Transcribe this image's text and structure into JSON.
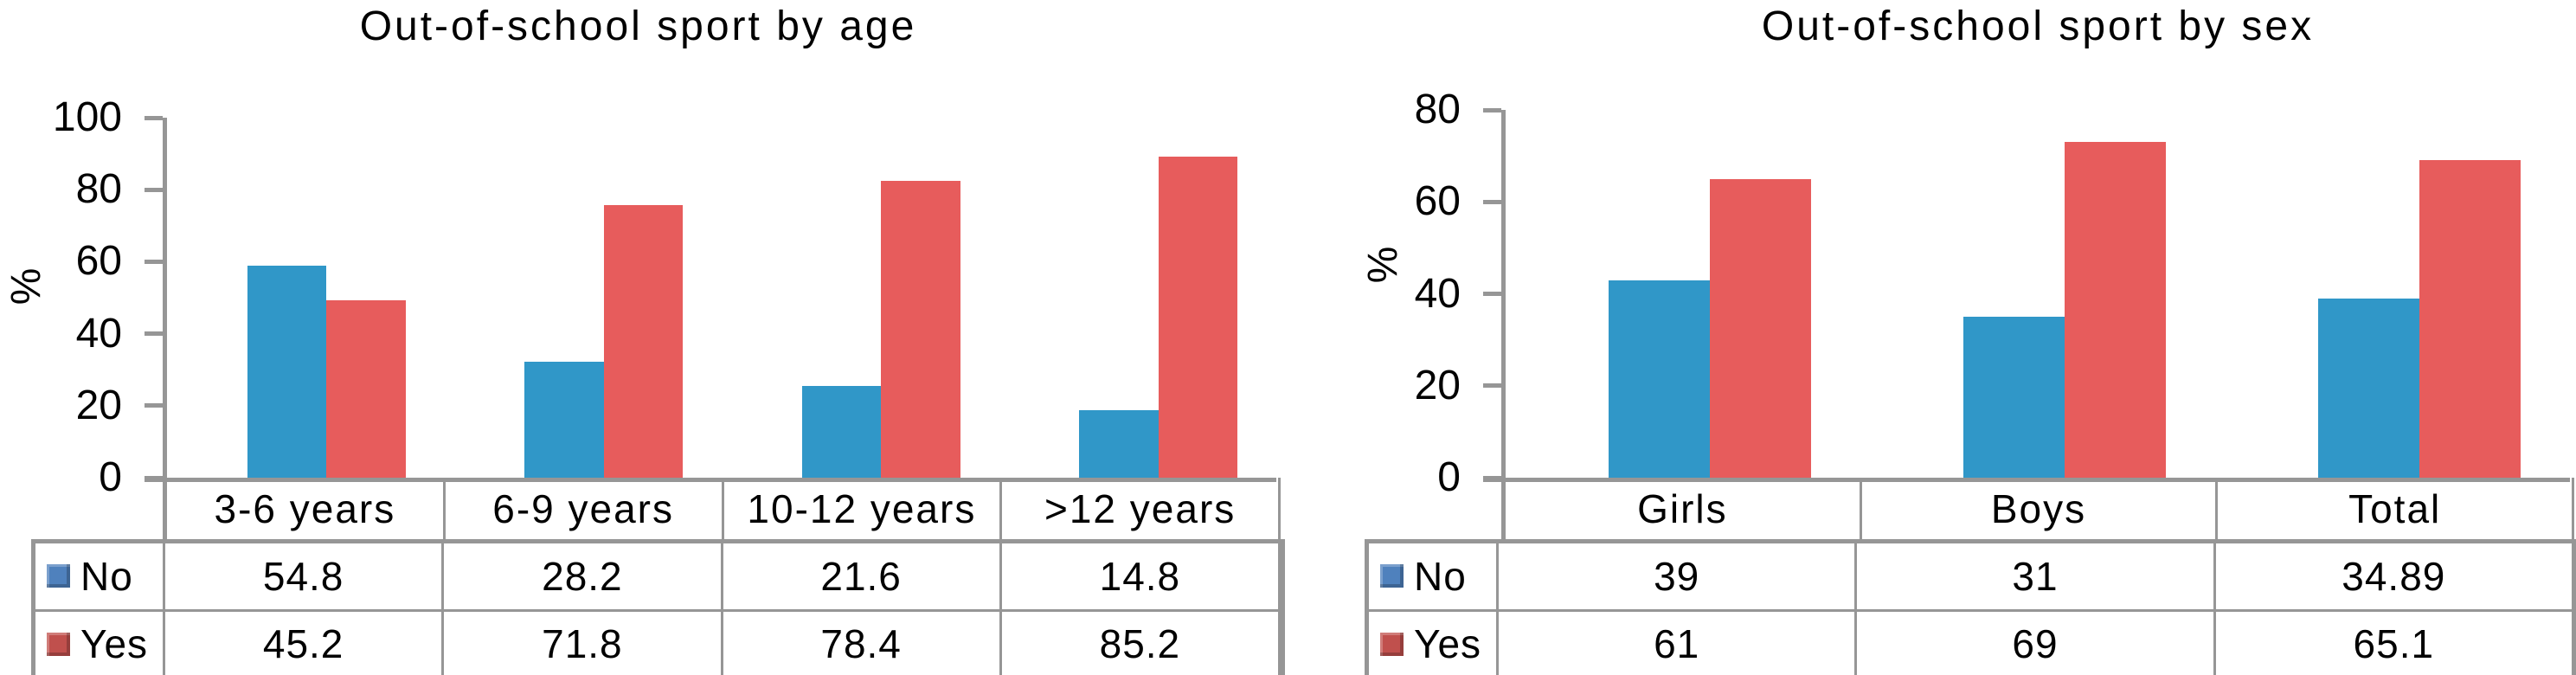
{
  "chart_data": [
    {
      "type": "bar",
      "title": "Out-of-school sport by age",
      "ylabel": "%",
      "ylim": [
        0,
        100
      ],
      "y_ticks": [
        100,
        80,
        60,
        40,
        20,
        0
      ],
      "categories": [
        "3-6 years",
        "6-9 years",
        "10-12 years",
        ">12 years"
      ],
      "series": [
        {
          "name": "No",
          "values": [
            54.8,
            28.2,
            21.6,
            14.8
          ],
          "bar_color": "#3097C8",
          "legend_color": "#4F81BD"
        },
        {
          "name": "Yes",
          "values": [
            45.2,
            71.8,
            78.4,
            85.2
          ],
          "bar_color": "#E75C5C",
          "legend_color": "#C0504D"
        }
      ],
      "grid": false,
      "legend_position": "table-left",
      "visual_bar_offset": 4
    },
    {
      "type": "bar",
      "title": "Out-of-school sport by sex",
      "ylabel": "%",
      "ylim": [
        0,
        80
      ],
      "y_ticks": [
        80,
        60,
        40,
        20,
        0
      ],
      "categories": [
        "Girls",
        "Boys",
        "Total"
      ],
      "series": [
        {
          "name": "No",
          "values": [
            39,
            31,
            34.89
          ],
          "bar_color": "#3097C8",
          "legend_color": "#4F81BD"
        },
        {
          "name": "Yes",
          "values": [
            61,
            69,
            65.1
          ],
          "bar_color": "#E75C5C",
          "legend_color": "#C0504D"
        }
      ],
      "grid": false,
      "legend_position": "table-left",
      "visual_bar_offset": 4
    }
  ],
  "styles": {
    "axis_line_color": "#969696",
    "table_border_color": "#969696",
    "text_color": "#000000",
    "background": "#FFFFFF"
  }
}
